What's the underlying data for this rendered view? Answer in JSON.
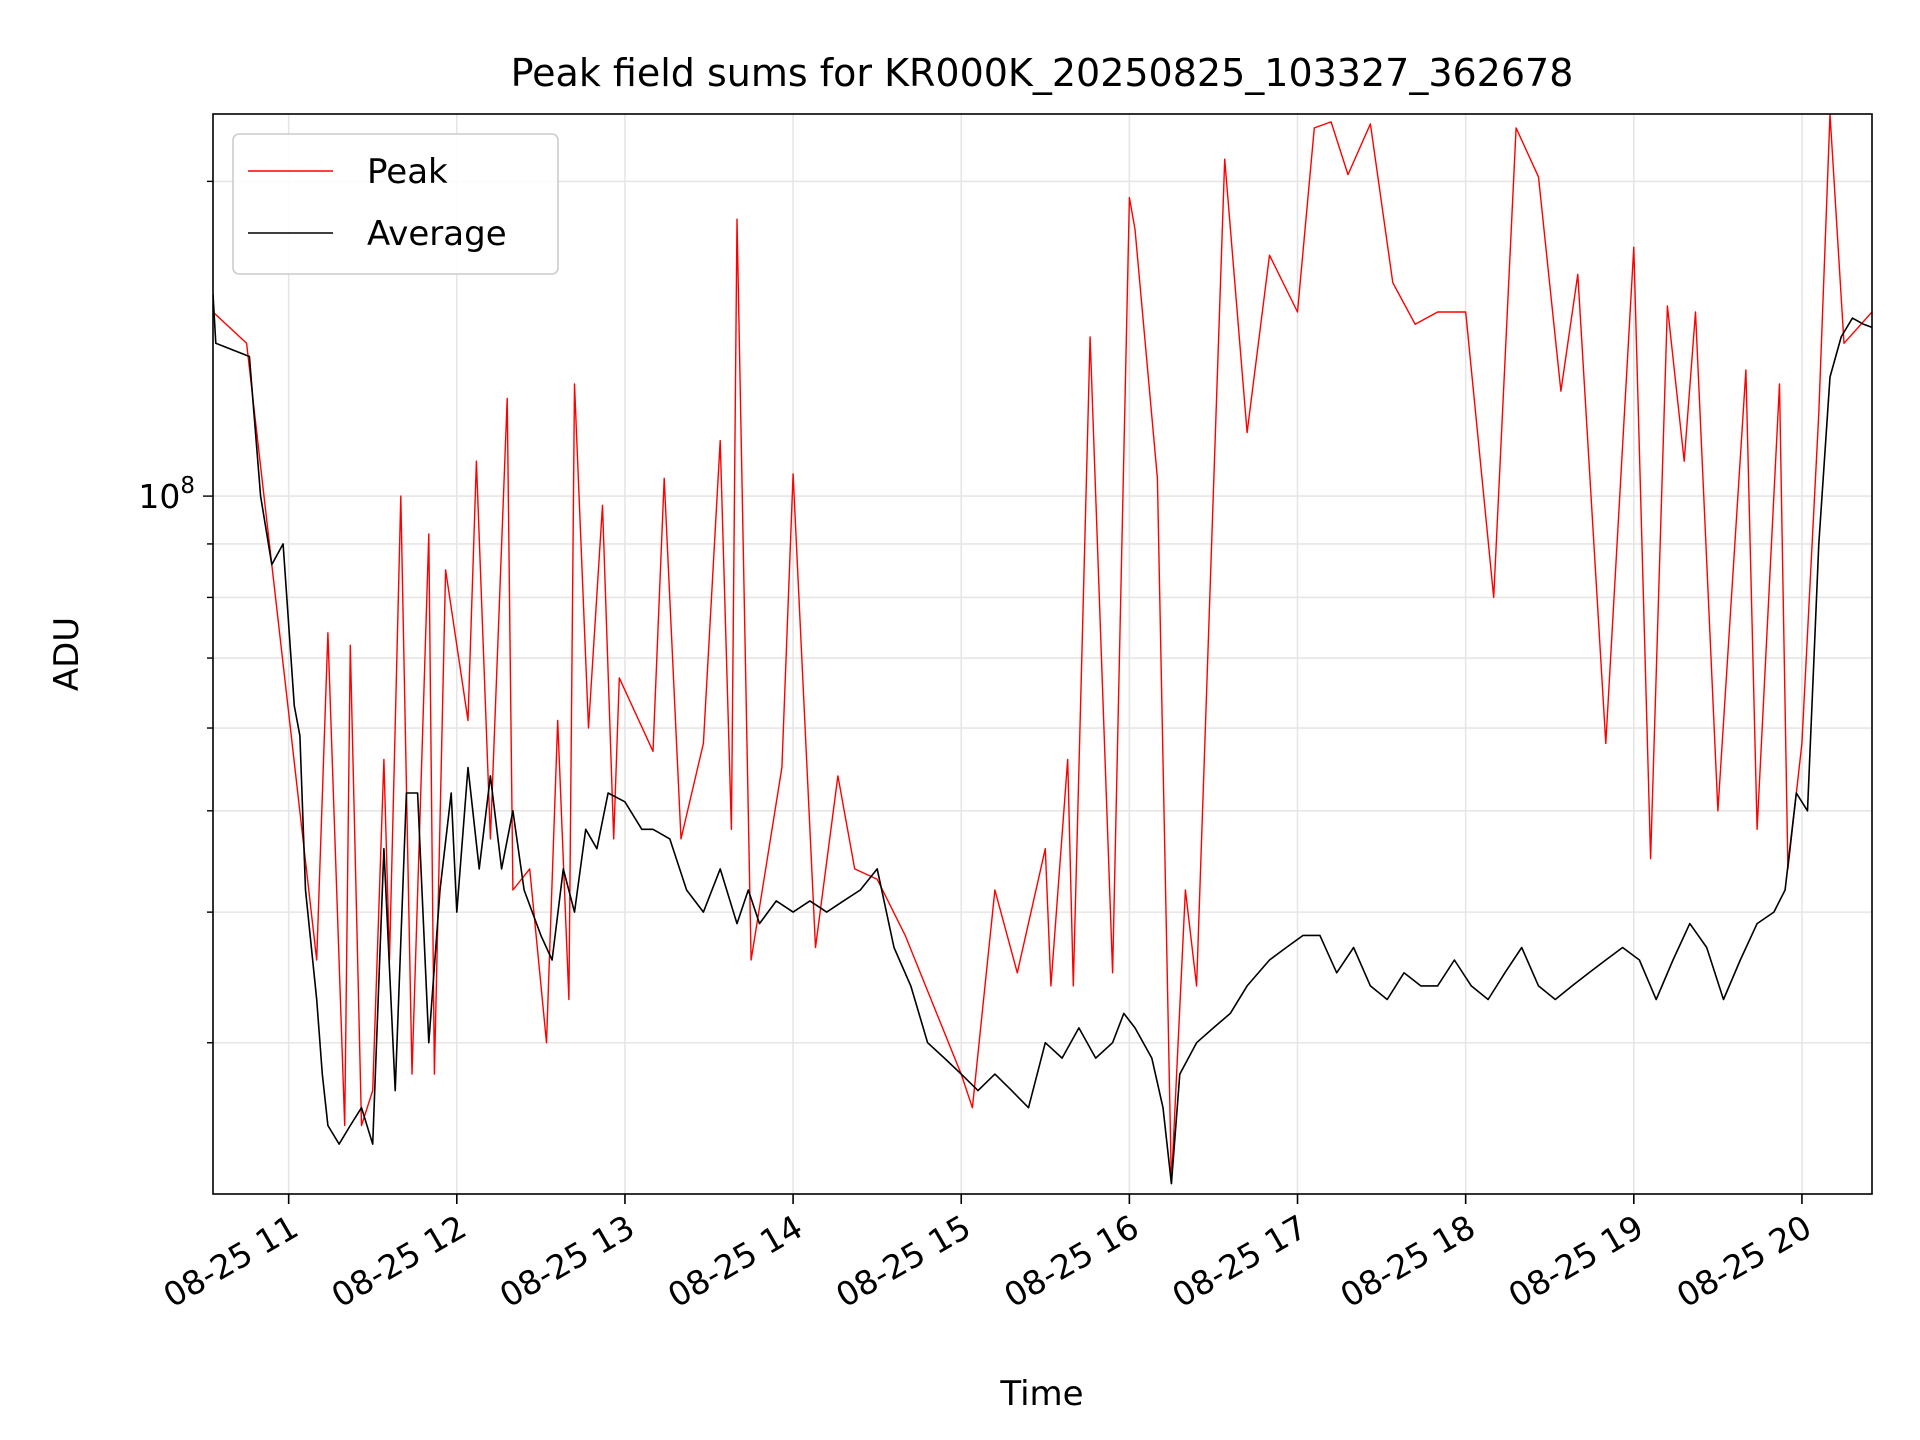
{
  "chart_data": {
    "type": "line",
    "title": "Peak field sums for KR000K_20250825_103327_362678",
    "xlabel": "Time",
    "ylabel": "ADU",
    "yscale": "log",
    "xlim": [
      "2025-08-25 10:33",
      "2025-08-25 20:25"
    ],
    "ylim": [
      21500000,
      232000000
    ],
    "grid": true,
    "legend_position": "upper left",
    "x_ticks": [
      "2025-08-25 11:00",
      "2025-08-25 12:00",
      "2025-08-25 13:00",
      "2025-08-25 14:00",
      "2025-08-25 15:00",
      "2025-08-25 16:00",
      "2025-08-25 17:00",
      "2025-08-25 18:00",
      "2025-08-25 19:00",
      "2025-08-25 20:00"
    ],
    "x_tick_labels": [
      "08-25 11",
      "08-25 12",
      "08-25 13",
      "08-25 14",
      "08-25 15",
      "08-25 16",
      "08-25 17",
      "08-25 18",
      "08-25 19",
      "08-25 20"
    ],
    "y_tick_labels": [
      {
        "base": "10",
        "exp": "8",
        "value": 100000000
      }
    ],
    "series": [
      {
        "name": "Peak",
        "color": "#ff0000",
        "x": [
          "10:33",
          "10:45",
          "11:00",
          "11:10",
          "11:14",
          "11:20",
          "11:22",
          "11:26",
          "11:30",
          "11:34",
          "11:36",
          "11:40",
          "11:44",
          "11:50",
          "11:52",
          "11:56",
          "12:04",
          "12:07",
          "12:12",
          "12:18",
          "12:20",
          "12:26",
          "12:32",
          "12:36",
          "12:40",
          "12:42",
          "12:47",
          "12:52",
          "12:56",
          "12:58",
          "13:10",
          "13:14",
          "13:20",
          "13:28",
          "13:34",
          "13:38",
          "13:40",
          "13:45",
          "13:56",
          "14:00",
          "14:08",
          "14:16",
          "14:22",
          "14:30",
          "14:40",
          "15:00",
          "15:04",
          "15:12",
          "15:20",
          "15:30",
          "15:32",
          "15:38",
          "15:40",
          "15:46",
          "15:54",
          "16:00",
          "16:02",
          "16:10",
          "16:15",
          "16:20",
          "16:24",
          "16:34",
          "16:42",
          "16:50",
          "17:00",
          "17:06",
          "17:12",
          "17:18",
          "17:26",
          "17:34",
          "17:42",
          "17:50",
          "18:00",
          "18:10",
          "18:18",
          "18:26",
          "18:34",
          "18:40",
          "18:50",
          "19:00",
          "19:06",
          "19:12",
          "19:18",
          "19:22",
          "19:30",
          "19:40",
          "19:44",
          "19:52",
          "19:55",
          "20:00",
          "20:06",
          "20:10",
          "20:15",
          "20:25"
        ],
        "values": [
          150000000,
          140000000,
          62000000,
          36000000,
          74000000,
          25000000,
          72000000,
          25000000,
          27000000,
          56000000,
          36000000,
          100000000,
          28000000,
          92000000,
          28000000,
          85000000,
          61000000,
          108000000,
          47000000,
          124000000,
          42000000,
          44000000,
          30000000,
          61000000,
          33000000,
          128000000,
          60000000,
          98000000,
          47000000,
          67000000,
          57000000,
          104000000,
          47000000,
          58000000,
          113000000,
          48000000,
          184000000,
          36000000,
          55000000,
          105000000,
          37000000,
          54000000,
          44000000,
          43000000,
          38000000,
          28000000,
          26000000,
          42000000,
          35000000,
          46000000,
          34000000,
          56000000,
          34000000,
          142000000,
          35000000,
          193000000,
          180000000,
          104000000,
          22000000,
          42000000,
          34000000,
          210000000,
          115000000,
          170000000,
          150000000,
          225000000,
          228000000,
          203000000,
          227000000,
          160000000,
          146000000,
          150000000,
          150000000,
          80000000,
          225000000,
          202000000,
          126000000,
          163000000,
          58000000,
          173000000,
          45000000,
          152000000,
          108000000,
          150000000,
          50000000,
          132000000,
          48000000,
          128000000,
          44000000,
          58000000,
          120000000,
          232000000,
          140000000,
          150000000
        ]
      },
      {
        "name": "Average",
        "color": "#000000",
        "x": [
          "10:33",
          "10:34",
          "10:40",
          "10:46",
          "10:50",
          "10:54",
          "10:58",
          "11:02",
          "11:04",
          "11:06",
          "11:10",
          "11:12",
          "11:14",
          "11:18",
          "11:22",
          "11:26",
          "11:30",
          "11:34",
          "11:38",
          "11:42",
          "11:46",
          "11:50",
          "11:54",
          "11:58",
          "12:00",
          "12:04",
          "12:08",
          "12:12",
          "12:16",
          "12:20",
          "12:24",
          "12:30",
          "12:34",
          "12:38",
          "12:42",
          "12:46",
          "12:50",
          "12:54",
          "13:00",
          "13:06",
          "13:10",
          "13:16",
          "13:22",
          "13:28",
          "13:34",
          "13:40",
          "13:44",
          "13:48",
          "13:54",
          "14:00",
          "14:06",
          "14:12",
          "14:18",
          "14:24",
          "14:30",
          "14:36",
          "14:42",
          "14:48",
          "14:54",
          "15:00",
          "15:06",
          "15:12",
          "15:18",
          "15:24",
          "15:30",
          "15:36",
          "15:42",
          "15:48",
          "15:54",
          "15:58",
          "16:02",
          "16:08",
          "16:12",
          "16:15",
          "16:18",
          "16:24",
          "16:30",
          "16:36",
          "16:42",
          "16:50",
          "16:56",
          "17:02",
          "17:08",
          "17:14",
          "17:20",
          "17:26",
          "17:32",
          "17:38",
          "17:44",
          "17:50",
          "17:56",
          "18:02",
          "18:08",
          "18:14",
          "18:20",
          "18:26",
          "18:32",
          "18:38",
          "18:44",
          "18:50",
          "18:56",
          "19:02",
          "19:08",
          "19:14",
          "19:20",
          "19:26",
          "19:32",
          "19:38",
          "19:44",
          "19:50",
          "19:54",
          "19:58",
          "20:02",
          "20:06",
          "20:10",
          "20:14",
          "20:18",
          "20:22",
          "20:25"
        ],
        "values": [
          156000000,
          140000000,
          138000000,
          136000000,
          100000000,
          86000000,
          90000000,
          63000000,
          59000000,
          42000000,
          33000000,
          28000000,
          25000000,
          24000000,
          25000000,
          26000000,
          24000000,
          46000000,
          27000000,
          52000000,
          52000000,
          30000000,
          42000000,
          52000000,
          40000000,
          55000000,
          44000000,
          54000000,
          44000000,
          50000000,
          42000000,
          38000000,
          36000000,
          44000000,
          40000000,
          48000000,
          46000000,
          52000000,
          51000000,
          48000000,
          48000000,
          47000000,
          42000000,
          40000000,
          44000000,
          39000000,
          42000000,
          39000000,
          41000000,
          40000000,
          41000000,
          40000000,
          41000000,
          42000000,
          44000000,
          37000000,
          34000000,
          30000000,
          29000000,
          28000000,
          27000000,
          28000000,
          27000000,
          26000000,
          30000000,
          29000000,
          31000000,
          29000000,
          30000000,
          32000000,
          31000000,
          29000000,
          26000000,
          22000000,
          28000000,
          30000000,
          31000000,
          32000000,
          34000000,
          36000000,
          37000000,
          38000000,
          38000000,
          35000000,
          37000000,
          34000000,
          33000000,
          35000000,
          34000000,
          34000000,
          36000000,
          34000000,
          33000000,
          35000000,
          37000000,
          34000000,
          33000000,
          34000000,
          35000000,
          36000000,
          37000000,
          36000000,
          33000000,
          36000000,
          39000000,
          37000000,
          33000000,
          36000000,
          39000000,
          40000000,
          42000000,
          52000000,
          50000000,
          90000000,
          130000000,
          142000000,
          148000000,
          146000000,
          145000000
        ]
      }
    ]
  }
}
